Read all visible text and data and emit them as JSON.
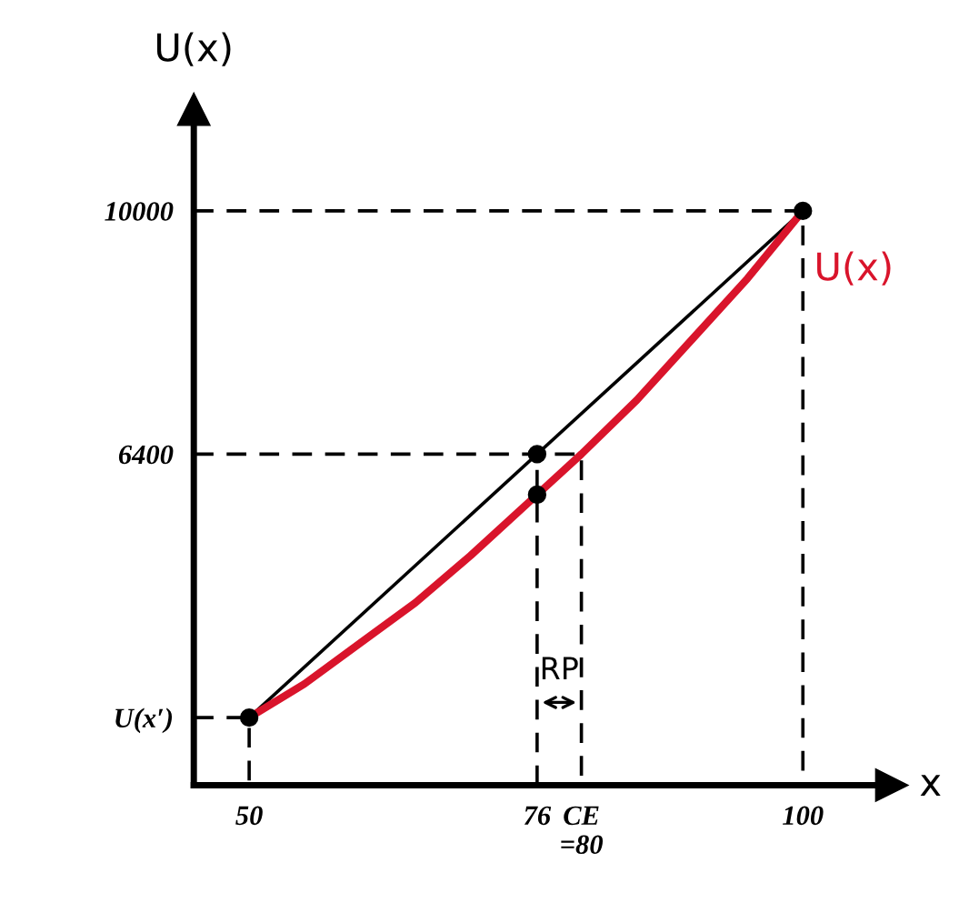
{
  "chart_data": {
    "type": "line",
    "xlabel": "x",
    "ylabel": "U(x)",
    "xlim": [
      45,
      108
    ],
    "ylim": [
      1500,
      11500
    ],
    "xticks": [
      50,
      76,
      {
        "value": 80,
        "label": "CE\n=80"
      },
      100
    ],
    "yticks": [
      {
        "value": 2500,
        "label": "U(x′)"
      },
      6400,
      10000
    ],
    "grid": false,
    "legend": false,
    "annotations": [
      "RP"
    ],
    "series": [
      {
        "name": "U(x)",
        "color": "#d9142b",
        "x": [
          50,
          55,
          60,
          65,
          70,
          76,
          80,
          85,
          90,
          95,
          100
        ],
        "values": [
          2500,
          3000,
          3600,
          4200,
          4900,
          5800,
          6400,
          7200,
          8100,
          9000,
          10000
        ]
      },
      {
        "color": "#000000",
        "x": [
          50,
          100
        ],
        "values": [
          2500,
          10000
        ]
      },
      {
        "type": "scatter",
        "marker": "circle",
        "color": "#000000",
        "x": [
          50,
          76,
          76,
          100
        ],
        "values": [
          2500,
          6400,
          5800,
          10000
        ]
      },
      {
        "color": "#000000",
        "line_style": "dashed",
        "x": [
          45,
          100,
          100
        ],
        "values": [
          10000,
          10000,
          1500
        ]
      },
      {
        "color": "#000000",
        "line_style": "dashed",
        "x": [
          45,
          80,
          80
        ],
        "values": [
          6400,
          6400,
          1500
        ]
      },
      {
        "color": "#000000",
        "line_style": "dashed",
        "x": [
          76,
          76
        ],
        "values": [
          1500,
          6400
        ]
      },
      {
        "color": "#000000",
        "line_style": "dashed",
        "x": [
          45,
          50,
          50
        ],
        "values": [
          2500,
          2500,
          1500
        ]
      }
    ]
  }
}
